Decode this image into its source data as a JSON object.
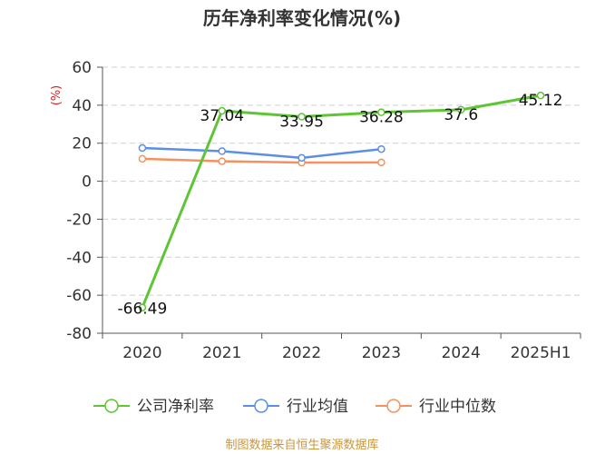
{
  "chart_data": {
    "type": "line",
    "title": "历年净利率变化情况(%)",
    "ylabel": "(%)",
    "xlabel": "",
    "categories": [
      "2020",
      "2021",
      "2022",
      "2023",
      "2024",
      "2025H1"
    ],
    "ylim": [
      -80,
      60
    ],
    "yticks": [
      60,
      40,
      20,
      0,
      -20,
      -40,
      -60,
      -80
    ],
    "grid": true,
    "legend_position": "bottom",
    "series": [
      {
        "name": "公司净利率",
        "color": "#5ec535",
        "values": [
          -66.49,
          37.04,
          33.95,
          36.28,
          37.6,
          45.12
        ],
        "labels": [
          "-66.49",
          "37.04",
          "33.95",
          "36.28",
          "37.6",
          "45.12"
        ]
      },
      {
        "name": "行业均值",
        "color": "#5b8ee6",
        "values": [
          17.5,
          15.8,
          12.3,
          16.9,
          null,
          null
        ]
      },
      {
        "name": "行业中位数",
        "color": "#f4915f",
        "values": [
          11.8,
          10.5,
          9.8,
          9.9,
          null,
          null
        ]
      }
    ]
  },
  "source": "制图数据来自恒生聚源数据库"
}
